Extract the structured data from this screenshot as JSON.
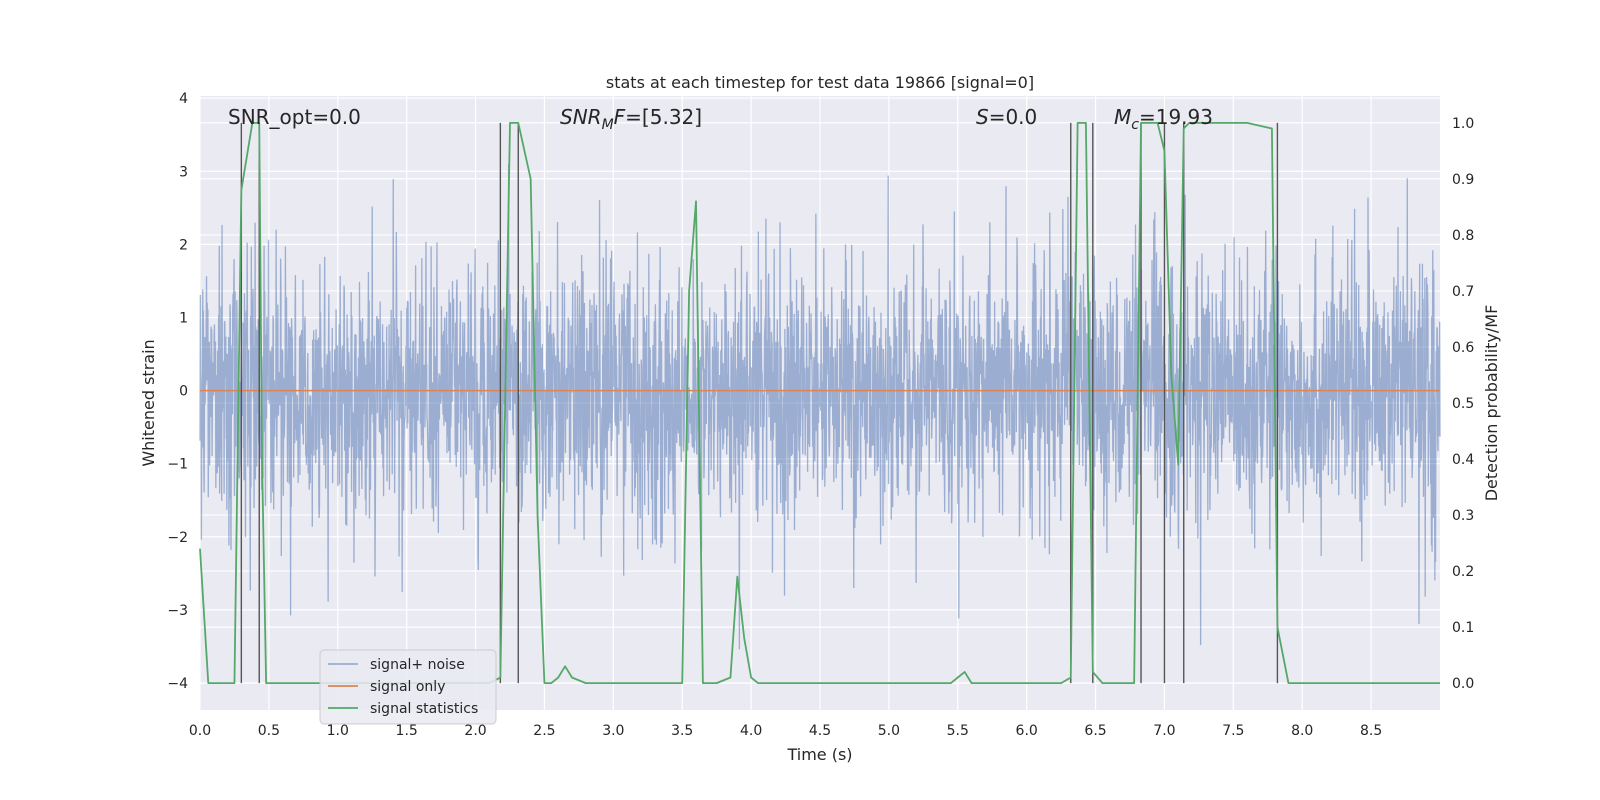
{
  "chart_data": {
    "type": "line",
    "title": "stats at each timestep for test data 19866 [signal=0]",
    "xlabel": "Time (s)",
    "ylabel_left": "Whitened strain",
    "ylabel_right": "Detection probability/MF",
    "xlim": [
      0.0,
      9.0
    ],
    "ylim_left": [
      -4.37,
      4.03
    ],
    "ylim_right": [
      -0.048,
      1.048
    ],
    "xticks": [
      "0.0",
      "0.5",
      "1.0",
      "1.5",
      "2.0",
      "2.5",
      "3.0",
      "3.5",
      "4.0",
      "4.5",
      "5.0",
      "5.5",
      "6.0",
      "6.5",
      "7.0",
      "7.5",
      "8.0",
      "8.5"
    ],
    "xtick_values": [
      0.0,
      0.5,
      1.0,
      1.5,
      2.0,
      2.5,
      3.0,
      3.5,
      4.0,
      4.5,
      5.0,
      5.5,
      6.0,
      6.5,
      7.0,
      7.5,
      8.0,
      8.5
    ],
    "yticks_left": [
      "−4",
      "−3",
      "−2",
      "−1",
      "0",
      "1",
      "2",
      "3",
      "4"
    ],
    "ytick_values_left": [
      -4,
      -3,
      -2,
      -1,
      0,
      1,
      2,
      3,
      4
    ],
    "yticks_right": [
      "0.0",
      "0.1",
      "0.2",
      "0.3",
      "0.4",
      "0.5",
      "0.6",
      "0.7",
      "0.8",
      "0.9",
      "1.0"
    ],
    "ytick_values_right": [
      0.0,
      0.1,
      0.2,
      0.3,
      0.4,
      0.5,
      0.6,
      0.7,
      0.8,
      0.9,
      1.0
    ],
    "grid": true,
    "legend_position": "lower-left",
    "annotations": [
      {
        "text": "SNR_opt=0.0",
        "x": 0.2
      },
      {
        "text": "SNR_MF=[5.32]",
        "x": 2.6
      },
      {
        "text": "S=0.0",
        "x": 5.6
      },
      {
        "text": "M_c=19.93",
        "x": 6.6
      }
    ],
    "series": [
      {
        "name": "signal+ noise",
        "axis": "left",
        "color": "#4c72b0",
        "opacity": 0.5,
        "kind": "noise",
        "typical_abs": 1.35,
        "extreme_abs": 3.6
      },
      {
        "name": "signal only",
        "axis": "left",
        "color": "#dd8452",
        "x": [
          0.0,
          9.0
        ],
        "y": [
          0.0,
          0.0
        ]
      },
      {
        "name": "signal statistics",
        "axis": "right",
        "color": "#55a868",
        "x": [
          0.0,
          0.06,
          0.25,
          0.3,
          0.38,
          0.43,
          0.45,
          0.48,
          0.52,
          1.0,
          1.5,
          2.1,
          2.18,
          2.25,
          2.31,
          2.4,
          2.45,
          2.5,
          2.55,
          2.6,
          2.65,
          2.7,
          2.8,
          2.9,
          3.0,
          3.1,
          3.2,
          3.3,
          3.4,
          3.5,
          3.55,
          3.6,
          3.65,
          3.7,
          3.75,
          3.85,
          3.9,
          3.95,
          4.0,
          4.05,
          4.1,
          4.2,
          4.3,
          4.4,
          4.5,
          5.0,
          5.45,
          5.5,
          5.55,
          5.6,
          5.7,
          5.8,
          6.0,
          6.25,
          6.32,
          6.37,
          6.43,
          6.48,
          6.55,
          6.6,
          6.7,
          6.78,
          6.83,
          6.88,
          6.95,
          7.0,
          7.05,
          7.1,
          7.14,
          7.18,
          7.2,
          7.25,
          7.4,
          7.6,
          7.78,
          7.82,
          7.9,
          8.0,
          8.2,
          8.5,
          9.0
        ],
        "y": [
          0.24,
          0.0,
          0.0,
          0.88,
          1.0,
          1.0,
          0.4,
          0.0,
          0.0,
          0.0,
          0.0,
          0.0,
          0.01,
          1.0,
          1.0,
          0.9,
          0.3,
          0.0,
          0.0,
          0.01,
          0.03,
          0.01,
          0.0,
          0.0,
          0.0,
          0.0,
          0.0,
          0.0,
          0.0,
          0.0,
          0.7,
          0.86,
          0.0,
          0.0,
          0.0,
          0.01,
          0.19,
          0.08,
          0.01,
          0.0,
          0.0,
          0.0,
          0.0,
          0.0,
          0.0,
          0.0,
          0.0,
          0.01,
          0.02,
          0.0,
          0.0,
          0.0,
          0.0,
          0.0,
          0.01,
          1.0,
          1.0,
          0.02,
          0.0,
          0.0,
          0.0,
          0.0,
          1.0,
          1.0,
          1.0,
          0.95,
          0.55,
          0.39,
          0.99,
          1.0,
          1.0,
          1.0,
          1.0,
          1.0,
          0.99,
          0.1,
          0.0,
          0.0,
          0.0,
          0.0,
          0.0
        ]
      }
    ],
    "vertical_lines": [
      0.3,
      0.43,
      2.18,
      2.31,
      6.32,
      6.48,
      6.83,
      7.0,
      7.14,
      7.82
    ]
  }
}
